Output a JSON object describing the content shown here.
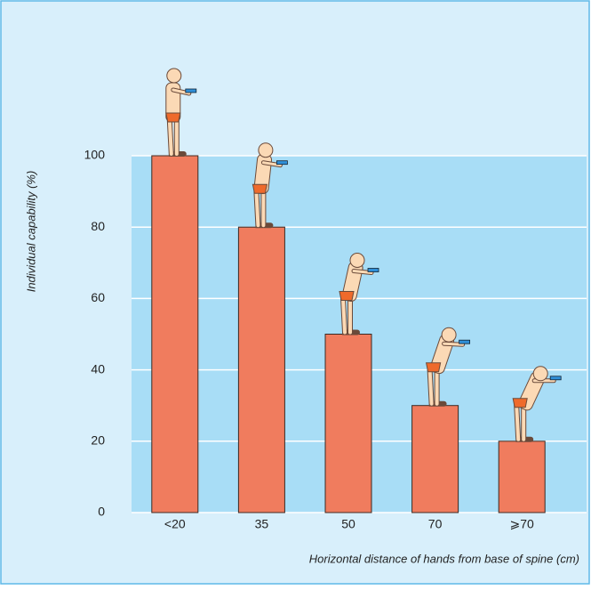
{
  "chart_data": {
    "type": "bar",
    "y_label": "Individual capability (%)",
    "x_label": "Horizontal distance of hands from base of spine (cm)",
    "categories": [
      "<20",
      "35",
      "50",
      "70",
      "⩾70"
    ],
    "values": [
      100,
      80,
      50,
      30,
      20
    ],
    "color": "#f07c5e",
    "ylim": [
      0,
      100
    ],
    "yticks": [
      0,
      20,
      40,
      60,
      80,
      100
    ],
    "grid": true
  }
}
